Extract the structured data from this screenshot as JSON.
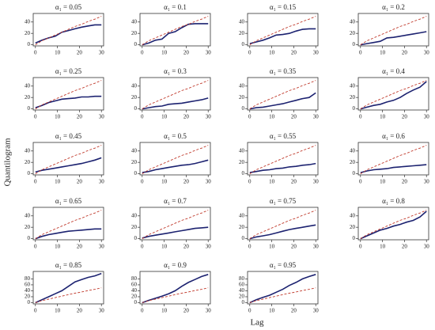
{
  "xlabel": "Lag",
  "ylabel": "Quantilogram",
  "chart_data": [
    {
      "type": "line",
      "title": "α₁ = 0.05",
      "x": [
        0,
        3,
        6,
        9,
        12,
        15,
        18,
        21,
        24,
        27,
        30
      ],
      "xlim": [
        -1,
        31
      ],
      "xticks": [
        0,
        10,
        20,
        30
      ],
      "ylim": [
        -2,
        55
      ],
      "yticks": [
        0,
        20,
        40
      ],
      "series": [
        {
          "color": "#1c2270",
          "dash": false,
          "values": [
            3,
            8,
            12,
            15,
            22,
            25,
            28,
            31,
            33,
            35,
            35
          ]
        },
        {
          "color": "#c0392b",
          "dash": true,
          "values": [
            0,
            7,
            12,
            17,
            22,
            27,
            32,
            36,
            41,
            45,
            50
          ]
        }
      ]
    },
    {
      "type": "line",
      "title": "α₁ = 0.1",
      "x": [
        0,
        3,
        6,
        9,
        12,
        15,
        18,
        21,
        24,
        27,
        30
      ],
      "xlim": [
        -1,
        31
      ],
      "xticks": [
        0,
        10,
        20,
        30
      ],
      "ylim": [
        -2,
        55
      ],
      "yticks": [
        0,
        20,
        40
      ],
      "series": [
        {
          "color": "#1c2270",
          "dash": false,
          "values": [
            0,
            3,
            8,
            10,
            20,
            23,
            30,
            36,
            37,
            37,
            37
          ]
        },
        {
          "color": "#c0392b",
          "dash": true,
          "values": [
            0,
            7,
            12,
            17,
            22,
            27,
            32,
            36,
            41,
            45,
            50
          ]
        }
      ]
    },
    {
      "type": "line",
      "title": "α₁ = 0.15",
      "x": [
        0,
        3,
        6,
        9,
        12,
        15,
        18,
        21,
        24,
        27,
        30
      ],
      "xlim": [
        -1,
        31
      ],
      "xticks": [
        0,
        10,
        20,
        30
      ],
      "ylim": [
        -2,
        55
      ],
      "yticks": [
        0,
        20,
        40
      ],
      "series": [
        {
          "color": "#1c2270",
          "dash": false,
          "values": [
            2,
            5,
            8,
            12,
            17,
            18,
            20,
            24,
            27,
            28,
            28
          ]
        },
        {
          "color": "#c0392b",
          "dash": true,
          "values": [
            0,
            7,
            12,
            17,
            22,
            27,
            32,
            36,
            41,
            45,
            50
          ]
        }
      ]
    },
    {
      "type": "line",
      "title": "α₁ = 0.2",
      "x": [
        0,
        3,
        6,
        9,
        12,
        15,
        18,
        21,
        24,
        27,
        30
      ],
      "xlim": [
        -1,
        31
      ],
      "xticks": [
        0,
        10,
        20,
        30
      ],
      "ylim": [
        -2,
        55
      ],
      "yticks": [
        0,
        20,
        40
      ],
      "series": [
        {
          "color": "#1c2270",
          "dash": false,
          "values": [
            0,
            2,
            4,
            6,
            12,
            13,
            15,
            17,
            19,
            21,
            23
          ]
        },
        {
          "color": "#c0392b",
          "dash": true,
          "values": [
            0,
            7,
            12,
            17,
            22,
            27,
            32,
            36,
            41,
            45,
            50
          ]
        }
      ]
    },
    {
      "type": "line",
      "title": "α₁ = 0.25",
      "x": [
        0,
        3,
        6,
        9,
        12,
        15,
        18,
        21,
        24,
        27,
        30
      ],
      "xlim": [
        -1,
        31
      ],
      "xticks": [
        0,
        10,
        20,
        30
      ],
      "ylim": [
        -2,
        55
      ],
      "yticks": [
        0,
        20,
        40
      ],
      "series": [
        {
          "color": "#1c2270",
          "dash": false,
          "values": [
            2,
            6,
            11,
            14,
            17,
            18,
            19,
            21,
            21,
            22,
            22
          ]
        },
        {
          "color": "#c0392b",
          "dash": true,
          "values": [
            0,
            7,
            12,
            17,
            22,
            27,
            32,
            36,
            41,
            45,
            50
          ]
        }
      ]
    },
    {
      "type": "line",
      "title": "α₁ = 0.3",
      "x": [
        0,
        3,
        6,
        9,
        12,
        15,
        18,
        21,
        24,
        27,
        30
      ],
      "xlim": [
        -1,
        31
      ],
      "xticks": [
        0,
        10,
        20,
        30
      ],
      "ylim": [
        -2,
        55
      ],
      "yticks": [
        0,
        20,
        40
      ],
      "series": [
        {
          "color": "#1c2270",
          "dash": false,
          "values": [
            0,
            2,
            4,
            5,
            8,
            9,
            10,
            12,
            14,
            16,
            19
          ]
        },
        {
          "color": "#c0392b",
          "dash": true,
          "values": [
            0,
            7,
            12,
            17,
            22,
            27,
            32,
            36,
            41,
            45,
            50
          ]
        }
      ]
    },
    {
      "type": "line",
      "title": "α₁ = 0.35",
      "x": [
        0,
        3,
        6,
        9,
        12,
        15,
        18,
        21,
        24,
        27,
        30
      ],
      "xlim": [
        -1,
        31
      ],
      "xticks": [
        0,
        10,
        20,
        30
      ],
      "ylim": [
        -2,
        55
      ],
      "yticks": [
        0,
        20,
        40
      ],
      "series": [
        {
          "color": "#1c2270",
          "dash": false,
          "values": [
            0,
            2,
            3,
            5,
            7,
            9,
            12,
            15,
            18,
            20,
            28
          ]
        },
        {
          "color": "#c0392b",
          "dash": true,
          "values": [
            0,
            7,
            12,
            17,
            22,
            27,
            32,
            36,
            41,
            45,
            50
          ]
        }
      ]
    },
    {
      "type": "line",
      "title": "α₁ = 0.4",
      "x": [
        0,
        3,
        6,
        9,
        12,
        15,
        18,
        21,
        24,
        27,
        30
      ],
      "xlim": [
        -1,
        31
      ],
      "xticks": [
        0,
        10,
        20,
        30
      ],
      "ylim": [
        -2,
        55
      ],
      "yticks": [
        0,
        20,
        40
      ],
      "series": [
        {
          "color": "#1c2270",
          "dash": false,
          "values": [
            0,
            3,
            6,
            8,
            12,
            15,
            20,
            27,
            33,
            38,
            48
          ]
        },
        {
          "color": "#c0392b",
          "dash": true,
          "values": [
            0,
            7,
            12,
            17,
            22,
            27,
            32,
            36,
            41,
            45,
            50
          ]
        }
      ]
    },
    {
      "type": "line",
      "title": "α₁ = 0.45",
      "x": [
        0,
        3,
        6,
        9,
        12,
        15,
        18,
        21,
        24,
        27,
        30
      ],
      "xlim": [
        -1,
        31
      ],
      "xticks": [
        0,
        10,
        20,
        30
      ],
      "ylim": [
        -2,
        55
      ],
      "yticks": [
        0,
        20,
        40
      ],
      "series": [
        {
          "color": "#1c2270",
          "dash": false,
          "values": [
            3,
            6,
            8,
            10,
            12,
            14,
            16,
            18,
            21,
            24,
            28
          ]
        },
        {
          "color": "#c0392b",
          "dash": true,
          "values": [
            0,
            7,
            12,
            17,
            22,
            27,
            32,
            36,
            41,
            45,
            50
          ]
        }
      ]
    },
    {
      "type": "line",
      "title": "α₁ = 0.5",
      "x": [
        0,
        3,
        6,
        9,
        12,
        15,
        18,
        21,
        24,
        27,
        30
      ],
      "xlim": [
        -1,
        31
      ],
      "xticks": [
        0,
        10,
        20,
        30
      ],
      "ylim": [
        -2,
        55
      ],
      "yticks": [
        0,
        20,
        40
      ],
      "series": [
        {
          "color": "#1c2270",
          "dash": false,
          "values": [
            2,
            4,
            7,
            9,
            11,
            13,
            15,
            16,
            18,
            21,
            24
          ]
        },
        {
          "color": "#c0392b",
          "dash": true,
          "values": [
            0,
            7,
            12,
            17,
            22,
            27,
            32,
            36,
            41,
            45,
            50
          ]
        }
      ]
    },
    {
      "type": "line",
      "title": "α₁ = 0.55",
      "x": [
        0,
        3,
        6,
        9,
        12,
        15,
        18,
        21,
        24,
        27,
        30
      ],
      "xlim": [
        -1,
        31
      ],
      "xticks": [
        0,
        10,
        20,
        30
      ],
      "ylim": [
        -2,
        55
      ],
      "yticks": [
        0,
        20,
        40
      ],
      "series": [
        {
          "color": "#1c2270",
          "dash": false,
          "values": [
            2,
            4,
            6,
            7,
            9,
            10,
            12,
            13,
            15,
            16,
            18
          ]
        },
        {
          "color": "#c0392b",
          "dash": true,
          "values": [
            0,
            7,
            12,
            17,
            22,
            27,
            32,
            36,
            41,
            45,
            50
          ]
        }
      ]
    },
    {
      "type": "line",
      "title": "α₁ = 0.6",
      "x": [
        0,
        3,
        6,
        9,
        12,
        15,
        18,
        21,
        24,
        27,
        30
      ],
      "xlim": [
        -1,
        31
      ],
      "xticks": [
        0,
        10,
        20,
        30
      ],
      "ylim": [
        -2,
        55
      ],
      "yticks": [
        0,
        20,
        40
      ],
      "series": [
        {
          "color": "#1c2270",
          "dash": false,
          "values": [
            2,
            5,
            7,
            8,
            9,
            11,
            12,
            13,
            14,
            15,
            16
          ]
        },
        {
          "color": "#c0392b",
          "dash": true,
          "values": [
            0,
            7,
            12,
            17,
            22,
            27,
            32,
            36,
            41,
            45,
            50
          ]
        }
      ]
    },
    {
      "type": "line",
      "title": "α₁ = 0.65",
      "x": [
        0,
        3,
        6,
        9,
        12,
        15,
        18,
        21,
        24,
        27,
        30
      ],
      "xlim": [
        -1,
        31
      ],
      "xticks": [
        0,
        10,
        20,
        30
      ],
      "ylim": [
        -2,
        55
      ],
      "yticks": [
        0,
        20,
        40
      ],
      "series": [
        {
          "color": "#1c2270",
          "dash": false,
          "values": [
            0,
            4,
            7,
            9,
            11,
            13,
            14,
            15,
            16,
            17,
            17
          ]
        },
        {
          "color": "#c0392b",
          "dash": true,
          "values": [
            0,
            7,
            12,
            17,
            22,
            27,
            32,
            36,
            41,
            45,
            50
          ]
        }
      ]
    },
    {
      "type": "line",
      "title": "α₁ = 0.7",
      "x": [
        0,
        3,
        6,
        9,
        12,
        15,
        18,
        21,
        24,
        27,
        30
      ],
      "xlim": [
        -1,
        31
      ],
      "xticks": [
        0,
        10,
        20,
        30
      ],
      "ylim": [
        -2,
        55
      ],
      "yticks": [
        0,
        20,
        40
      ],
      "series": [
        {
          "color": "#1c2270",
          "dash": false,
          "values": [
            1,
            4,
            6,
            8,
            10,
            12,
            14,
            16,
            18,
            19,
            20
          ]
        },
        {
          "color": "#c0392b",
          "dash": true,
          "values": [
            0,
            7,
            12,
            17,
            22,
            27,
            32,
            36,
            41,
            45,
            50
          ]
        }
      ]
    },
    {
      "type": "line",
      "title": "α₁ = 0.75",
      "x": [
        0,
        3,
        6,
        9,
        12,
        15,
        18,
        21,
        24,
        27,
        30
      ],
      "xlim": [
        -1,
        31
      ],
      "xticks": [
        0,
        10,
        20,
        30
      ],
      "ylim": [
        -2,
        55
      ],
      "yticks": [
        0,
        20,
        40
      ],
      "series": [
        {
          "color": "#1c2270",
          "dash": false,
          "values": [
            0,
            3,
            5,
            7,
            10,
            13,
            16,
            18,
            20,
            22,
            24
          ]
        },
        {
          "color": "#c0392b",
          "dash": true,
          "values": [
            0,
            7,
            12,
            17,
            22,
            27,
            32,
            36,
            41,
            45,
            50
          ]
        }
      ]
    },
    {
      "type": "line",
      "title": "α₁ = 0.8",
      "x": [
        0,
        3,
        6,
        9,
        12,
        15,
        18,
        21,
        24,
        27,
        30
      ],
      "xlim": [
        -1,
        31
      ],
      "xticks": [
        0,
        10,
        20,
        30
      ],
      "ylim": [
        -2,
        55
      ],
      "yticks": [
        0,
        20,
        40
      ],
      "series": [
        {
          "color": "#1c2270",
          "dash": false,
          "values": [
            0,
            5,
            10,
            15,
            18,
            22,
            25,
            29,
            32,
            38,
            48
          ]
        },
        {
          "color": "#c0392b",
          "dash": true,
          "values": [
            0,
            7,
            12,
            17,
            22,
            27,
            32,
            36,
            41,
            45,
            50
          ]
        }
      ]
    },
    {
      "type": "line",
      "title": "α₁ = 0.85",
      "x": [
        0,
        3,
        6,
        9,
        12,
        15,
        18,
        21,
        24,
        27,
        30
      ],
      "xlim": [
        -1,
        31
      ],
      "xticks": [
        0,
        10,
        20,
        30
      ],
      "ylim": [
        -4,
        105
      ],
      "yticks": [
        0,
        20,
        40,
        60,
        80
      ],
      "series": [
        {
          "color": "#1c2270",
          "dash": false,
          "values": [
            0,
            10,
            20,
            30,
            40,
            55,
            70,
            78,
            85,
            90,
            98
          ]
        },
        {
          "color": "#c0392b",
          "dash": true,
          "values": [
            0,
            7,
            12,
            17,
            22,
            27,
            32,
            36,
            41,
            45,
            50
          ]
        }
      ]
    },
    {
      "type": "line",
      "title": "α₁ = 0.9",
      "x": [
        0,
        3,
        6,
        9,
        12,
        15,
        18,
        21,
        24,
        27,
        30
      ],
      "xlim": [
        -1,
        31
      ],
      "xticks": [
        0,
        10,
        20,
        30
      ],
      "ylim": [
        -4,
        105
      ],
      "yticks": [
        0,
        20,
        40,
        60,
        80
      ],
      "series": [
        {
          "color": "#1c2270",
          "dash": false,
          "values": [
            0,
            8,
            15,
            22,
            30,
            40,
            55,
            68,
            78,
            88,
            95
          ]
        },
        {
          "color": "#c0392b",
          "dash": true,
          "values": [
            0,
            7,
            12,
            17,
            22,
            27,
            32,
            36,
            41,
            45,
            50
          ]
        }
      ]
    },
    {
      "type": "line",
      "title": "α₁ = 0.95",
      "x": [
        0,
        3,
        6,
        9,
        12,
        15,
        18,
        21,
        24,
        27,
        30
      ],
      "xlim": [
        -1,
        31
      ],
      "xticks": [
        0,
        10,
        20,
        30
      ],
      "ylim": [
        -4,
        105
      ],
      "yticks": [
        0,
        20,
        40,
        60,
        80
      ],
      "series": [
        {
          "color": "#1c2270",
          "dash": false,
          "values": [
            0,
            10,
            18,
            25,
            35,
            45,
            58,
            68,
            80,
            88,
            95
          ]
        },
        {
          "color": "#c0392b",
          "dash": true,
          "values": [
            0,
            7,
            12,
            17,
            22,
            27,
            32,
            36,
            41,
            45,
            50
          ]
        }
      ]
    }
  ]
}
